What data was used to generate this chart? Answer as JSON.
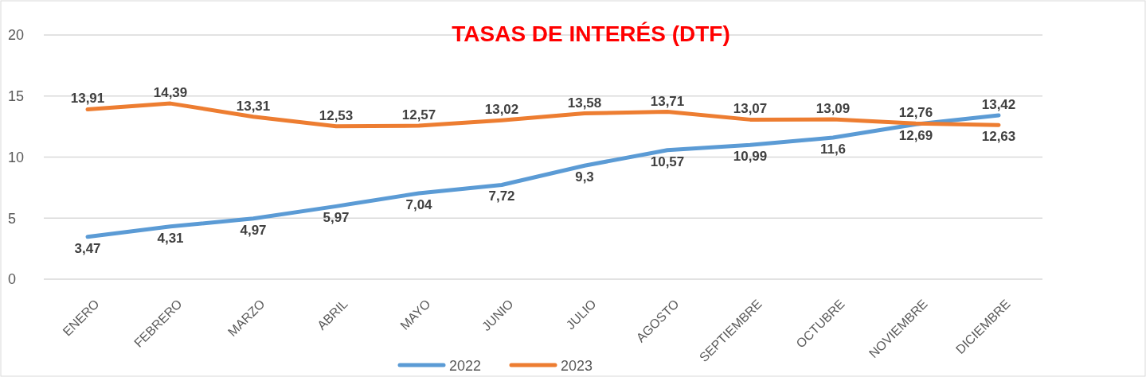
{
  "chart_data": {
    "type": "line",
    "title": "TASAS DE INTERÉS (DTF)",
    "categories": [
      "ENERO",
      "FEBRERO",
      "MARZO",
      "ABRIL",
      "MAYO",
      "JUNIO",
      "JULIO",
      "AGOSTO",
      "SEPTIEMBRE",
      "OCTUBRE",
      "NOVIEMBRE",
      "DICIEMBRE"
    ],
    "series": [
      {
        "name": "2022",
        "color": "#5b9bd5",
        "values": [
          3.47,
          4.31,
          4.97,
          5.97,
          7.04,
          7.72,
          9.3,
          10.57,
          10.99,
          11.6,
          12.69,
          13.42
        ],
        "value_labels": [
          "3,47",
          "4,31",
          "4,97",
          "5,97",
          "7,04",
          "7,72",
          "9,3",
          "10,57",
          "10,99",
          "11,6",
          "12,69",
          "13,42"
        ]
      },
      {
        "name": "2023",
        "color": "#ed7d31",
        "values": [
          13.91,
          14.39,
          13.31,
          12.53,
          12.57,
          13.02,
          13.58,
          13.71,
          13.07,
          13.09,
          12.76,
          12.63
        ],
        "value_labels": [
          "13,91",
          "14,39",
          "13,31",
          "12,53",
          "12,57",
          "13,02",
          "13,58",
          "13,71",
          "13,07",
          "13,09",
          "12,76",
          "12,63"
        ]
      }
    ],
    "ylim": [
      0,
      20
    ],
    "yticks": [
      0,
      5,
      10,
      15,
      20
    ],
    "grid": "y",
    "legend": "bottom",
    "marker": "none"
  }
}
